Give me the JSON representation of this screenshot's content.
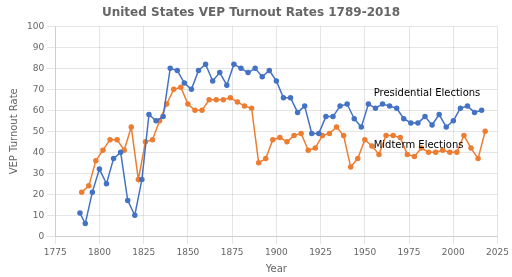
{
  "chart_data": {
    "type": "line",
    "title": "United States VEP Turnout Rates 1789-2018",
    "x_label": "Year",
    "y_label": "VEP Turnout Rate",
    "series": [
      {
        "name": "Presidential Elections",
        "color": "#4472C4",
        "marker": "circle",
        "x": [
          1789,
          1792,
          1796,
          1800,
          1804,
          1808,
          1812,
          1816,
          1820,
          1824,
          1828,
          1832,
          1836,
          1840,
          1844,
          1848,
          1852,
          1856,
          1860,
          1864,
          1868,
          1872,
          1876,
          1880,
          1884,
          1888,
          1892,
          1896,
          1900,
          1904,
          1908,
          1912,
          1916,
          1920,
          1924,
          1928,
          1932,
          1936,
          1940,
          1944,
          1948,
          1952,
          1956,
          1960,
          1964,
          1968,
          1972,
          1976,
          1980,
          1984,
          1988,
          1992,
          1996,
          2000,
          2004,
          2008,
          2012,
          2016
        ],
        "values": [
          11,
          6,
          21,
          32,
          25,
          37,
          40,
          17,
          10,
          27,
          58,
          55,
          57,
          80,
          79,
          73,
          70,
          79,
          82,
          74,
          78,
          72,
          82,
          80,
          78,
          80,
          76,
          79,
          74,
          66,
          66,
          59,
          62,
          49,
          49,
          57,
          57,
          62,
          63,
          56,
          52,
          63,
          61,
          63,
          62,
          61,
          56,
          54,
          54,
          57,
          53,
          58,
          52,
          55,
          61,
          62,
          59,
          60
        ]
      },
      {
        "name": "Midterm Elections",
        "color": "#ED7D31",
        "marker": "circle",
        "x": [
          1790,
          1794,
          1798,
          1802,
          1806,
          1810,
          1814,
          1818,
          1822,
          1826,
          1830,
          1834,
          1838,
          1842,
          1846,
          1850,
          1854,
          1858,
          1862,
          1866,
          1870,
          1874,
          1878,
          1882,
          1886,
          1890,
          1894,
          1898,
          1902,
          1906,
          1910,
          1914,
          1918,
          1922,
          1926,
          1930,
          1934,
          1938,
          1942,
          1946,
          1950,
          1954,
          1958,
          1962,
          1966,
          1970,
          1974,
          1978,
          1982,
          1986,
          1990,
          1994,
          1998,
          2002,
          2006,
          2010,
          2014,
          2018
        ],
        "values": [
          21,
          24,
          36,
          41,
          46,
          46,
          41,
          52,
          27,
          45,
          46,
          55,
          63,
          70,
          71,
          63,
          60,
          60,
          65,
          65,
          65,
          66,
          64,
          62,
          61,
          35,
          37,
          46,
          47,
          45,
          48,
          49,
          41,
          42,
          48,
          49,
          52,
          48,
          33,
          37,
          46,
          43,
          39,
          48,
          48,
          47,
          39,
          38,
          42,
          40,
          40,
          41,
          40,
          40,
          48,
          42,
          37,
          50
        ]
      }
    ],
    "annotations": [
      {
        "text": "Presidential Elections",
        "x": 1955,
        "y": 67
      },
      {
        "text": "Midterm Elections",
        "x": 1955,
        "y": 42
      }
    ],
    "xlim": [
      1775,
      2025
    ],
    "ylim": [
      0,
      100
    ],
    "xticks": [
      1775,
      1800,
      1825,
      1850,
      1875,
      1900,
      1925,
      1950,
      1975,
      2000,
      2025
    ],
    "yticks": [
      0,
      10,
      20,
      30,
      40,
      50,
      60,
      70,
      80,
      90,
      100
    ],
    "grid": true
  }
}
